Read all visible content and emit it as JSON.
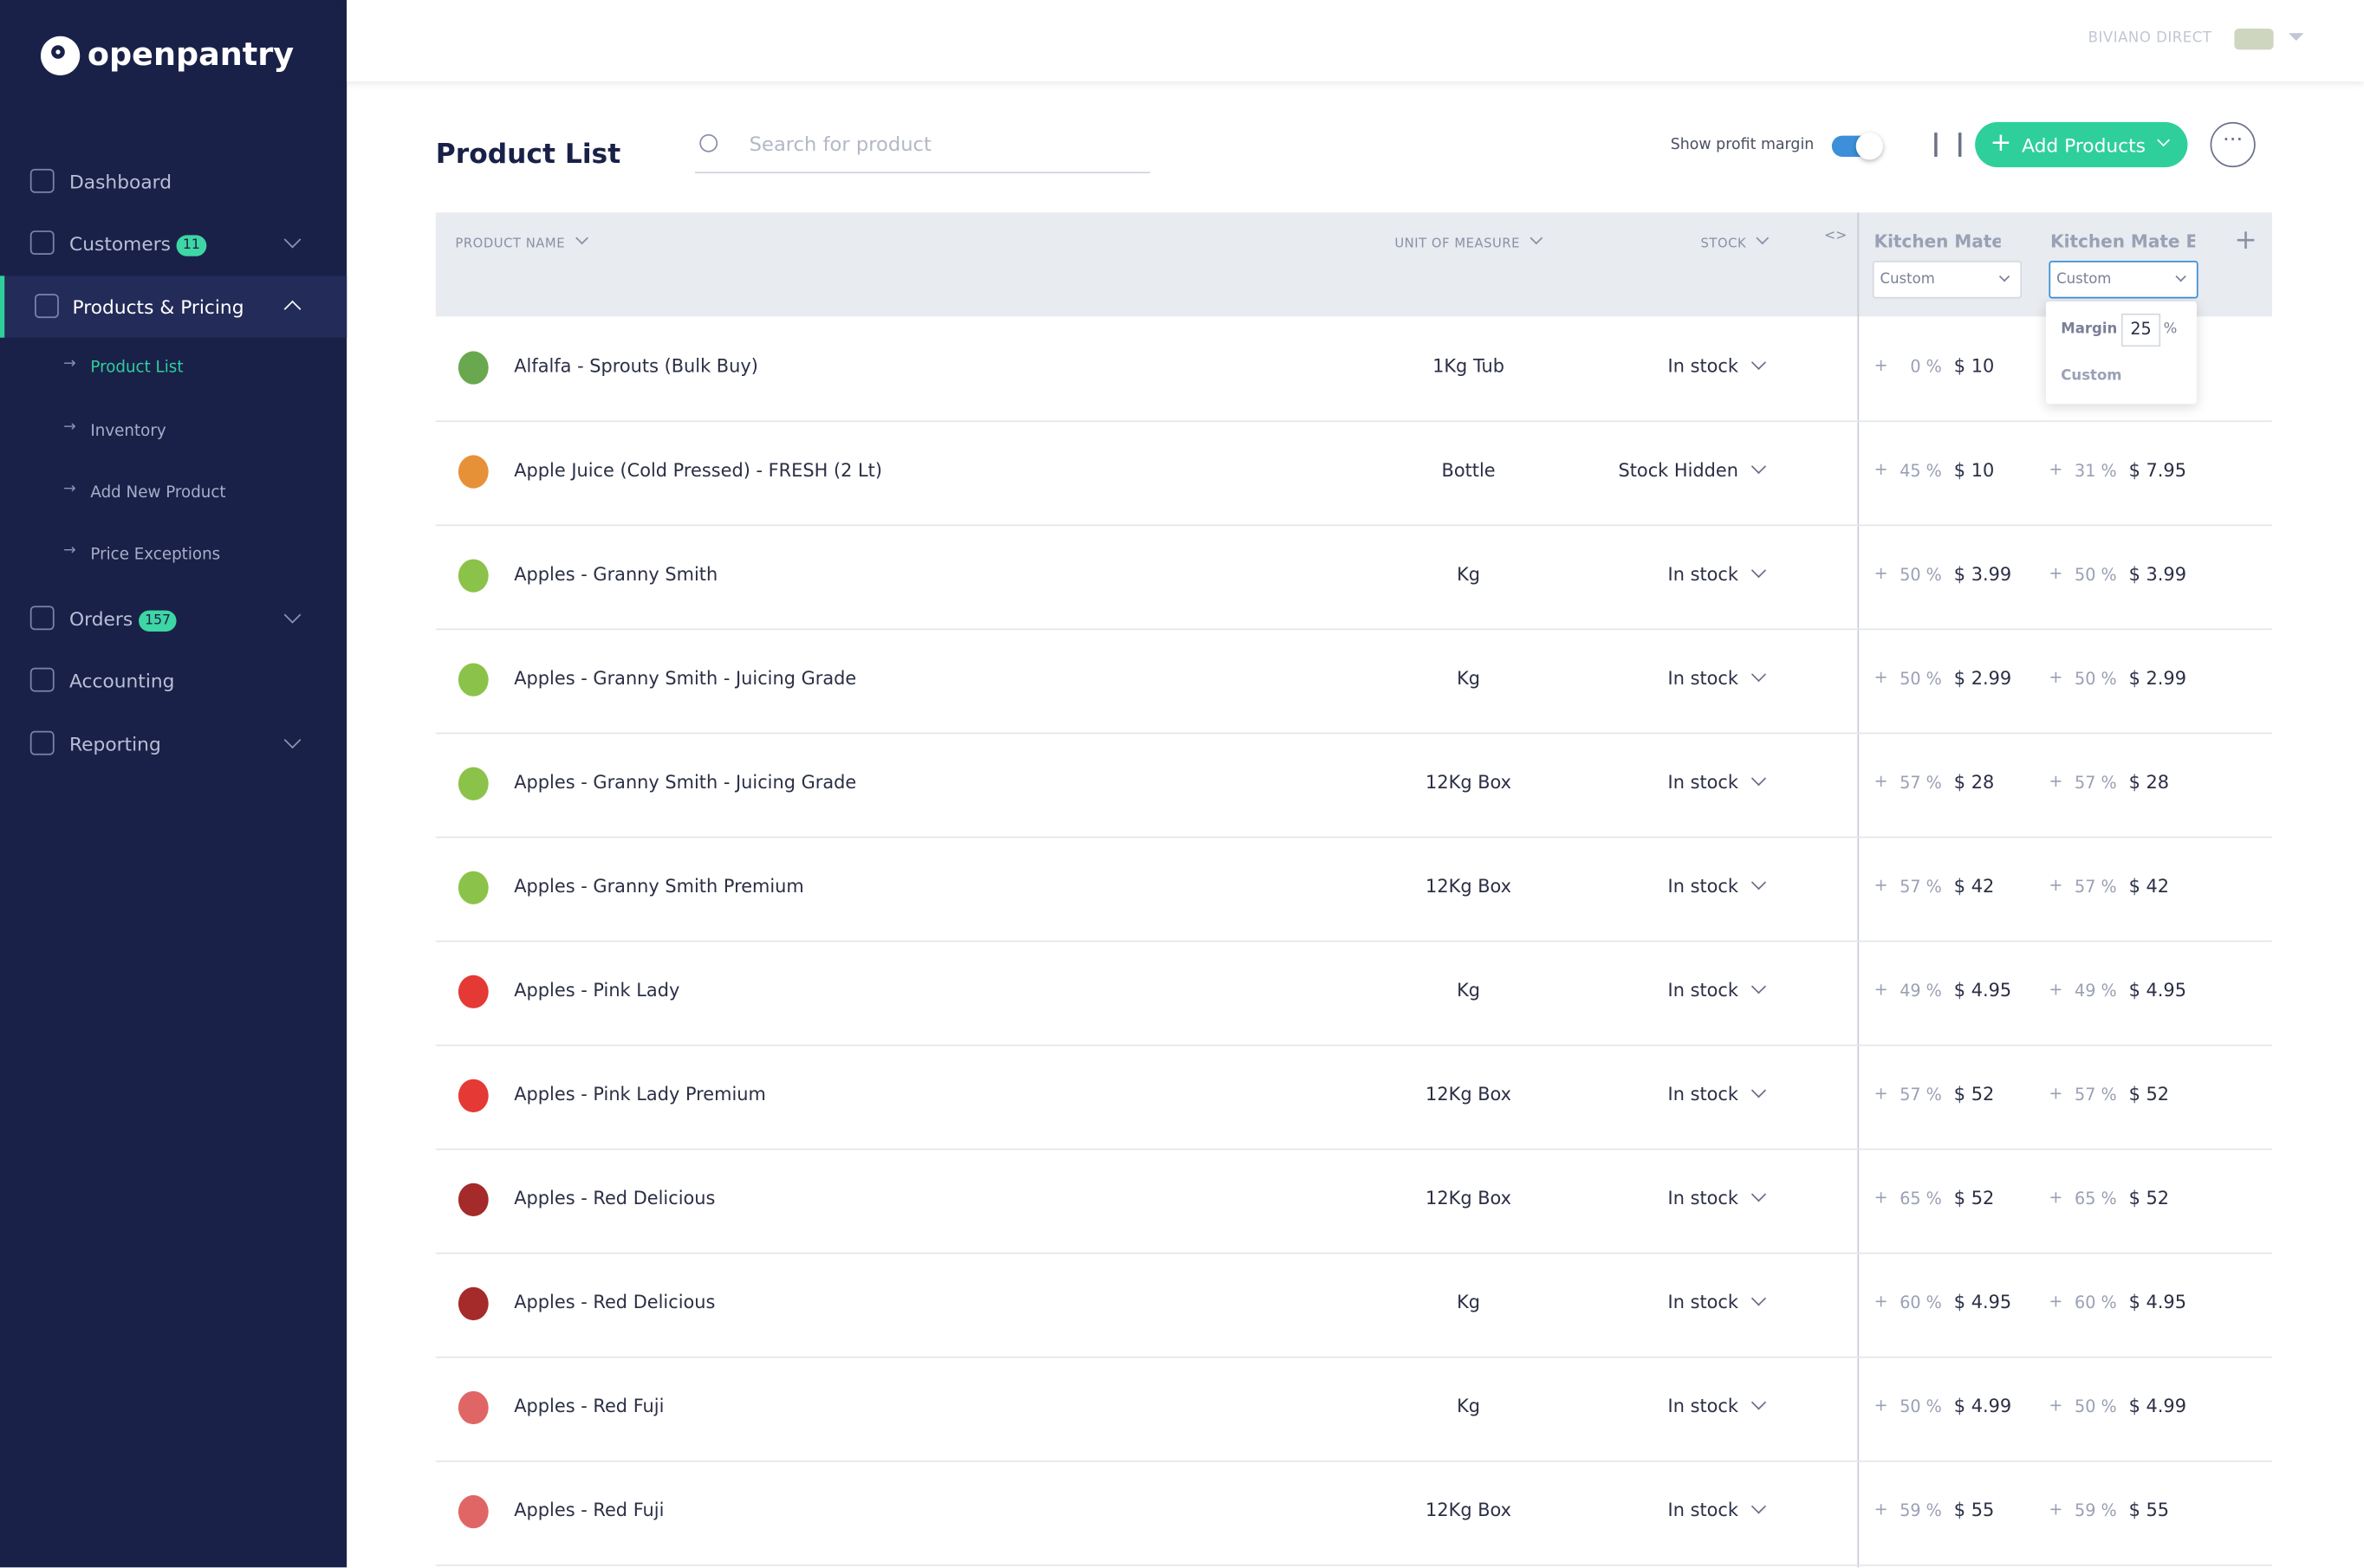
{
  "sidebar": {
    "logo": "openpantry",
    "nav": [
      {
        "label": "Dashboard"
      },
      {
        "label": "Customers",
        "badge": "11"
      },
      {
        "label": "Products & Pricing",
        "children": [
          "Product List",
          "Inventory",
          "Add New Product",
          "Price Exceptions"
        ]
      },
      {
        "label": "Orders",
        "badge": "157"
      },
      {
        "label": "Accounting"
      },
      {
        "label": "Reporting"
      }
    ]
  },
  "topbar": {
    "account": "BIVIANO DIRECT"
  },
  "page": {
    "title": "Product List",
    "search_placeholder": "Search for product",
    "profit_toggle": "Show profit margin",
    "add_button": "Add Products"
  },
  "table": {
    "headers": [
      "PRODUCT NAME",
      "UNIT OF MEASURE",
      "STOCK"
    ],
    "price_columns": [
      {
        "name": "Kitchen Mate N",
        "mode": "Custom"
      },
      {
        "name": "Kitchen Mate Ex",
        "mode": "Custom"
      }
    ],
    "popup": {
      "label": "Margin",
      "value": "25",
      "unit": "%",
      "option": "Custom"
    },
    "rows": [
      [
        "Alfalfa - Sprouts (Bulk Buy)",
        "1Kg Tub",
        "In stock",
        "0 %",
        "$ 10"
      ],
      [
        "Apple Juice (Cold Pressed) - FRESH (2 Lt)",
        "Bottle",
        "Stock Hidden",
        "45 %",
        "$ 10",
        "31 %",
        "$ 7.95"
      ],
      [
        "Apples - Granny Smith",
        "Kg",
        "In stock",
        "50 %",
        "$ 3.99",
        "50 %",
        "$ 3.99"
      ],
      [
        "Apples - Granny Smith - Juicing Grade",
        "Kg",
        "In stock",
        "50 %",
        "$ 2.99",
        "50 %",
        "$ 2.99"
      ],
      [
        "Apples - Granny Smith - Juicing Grade",
        "12Kg Box",
        "In stock",
        "57 %",
        "$ 28",
        "57 %",
        "$ 28"
      ],
      [
        "Apples - Granny Smith Premium",
        "12Kg Box",
        "In stock",
        "57 %",
        "$ 42",
        "57 %",
        "$ 42"
      ],
      [
        "Apples - Pink Lady",
        "Kg",
        "In stock",
        "49 %",
        "$ 4.95",
        "49 %",
        "$ 4.95"
      ],
      [
        "Apples - Pink Lady Premium",
        "12Kg Box",
        "In stock",
        "57 %",
        "$ 52",
        "57 %",
        "$ 52"
      ],
      [
        "Apples - Red Delicious",
        "12Kg Box",
        "In stock",
        "65 %",
        "$ 52",
        "65 %",
        "$ 52"
      ],
      [
        "Apples - Red Delicious",
        "Kg",
        "In stock",
        "60 %",
        "$ 4.95",
        "60 %",
        "$ 4.95"
      ],
      [
        "Apples - Red Fuji",
        "Kg",
        "In stock",
        "50 %",
        "$ 4.99",
        "50 %",
        "$ 4.99"
      ],
      [
        "Apples - Red Fuji",
        "12Kg Box",
        "In stock",
        "59 %",
        "$ 55",
        "59 %",
        "$ 55"
      ]
    ]
  }
}
